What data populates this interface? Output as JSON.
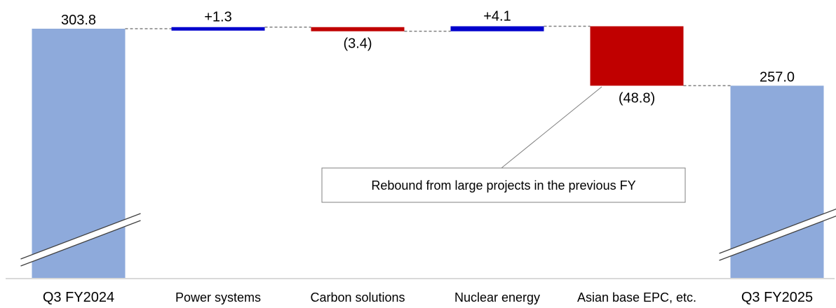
{
  "chart_data": {
    "type": "waterfall",
    "categories": [
      "Q3 FY2024",
      "Power systems",
      "Carbon solutions",
      "Nuclear energy",
      "Asian base EPC, etc.",
      "Q3 FY2025"
    ],
    "steps": [
      {
        "category": "Q3 FY2024",
        "kind": "total",
        "value": 303.8,
        "label": "303.8"
      },
      {
        "category": "Power systems",
        "kind": "increase",
        "value": 1.3,
        "label": "+1.3"
      },
      {
        "category": "Carbon solutions",
        "kind": "decrease",
        "value": -3.4,
        "label": "(3.4)"
      },
      {
        "category": "Nuclear energy",
        "kind": "increase",
        "value": 4.1,
        "label": "+4.1"
      },
      {
        "category": "Asian base EPC, etc.",
        "kind": "decrease",
        "value": -48.8,
        "label": "(48.8)"
      },
      {
        "category": "Q3 FY2025",
        "kind": "total",
        "value": 257.0,
        "label": "257.0"
      }
    ],
    "axis_break": true,
    "grid": false,
    "legend": "none",
    "colors": {
      "total": "#8eaadb",
      "increase": "#0000cc",
      "decrease": "#c00000",
      "connector": "#808080",
      "baseline": "#d9d9d9"
    },
    "annotation": {
      "text": "Rebound from large projects in the previous FY",
      "target": "Asian base EPC, etc."
    }
  }
}
